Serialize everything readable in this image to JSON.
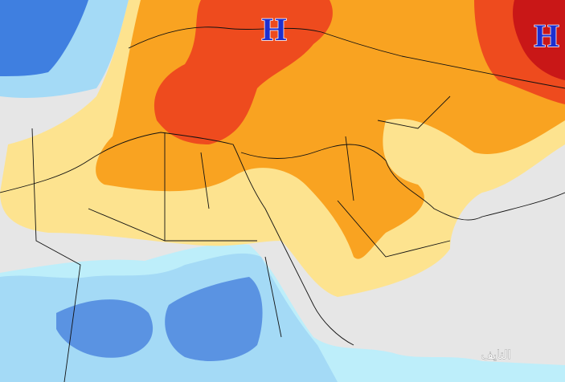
{
  "markers": [
    {
      "label": "H"
    },
    {
      "label": "H"
    }
  ],
  "watermark": "النايف"
}
